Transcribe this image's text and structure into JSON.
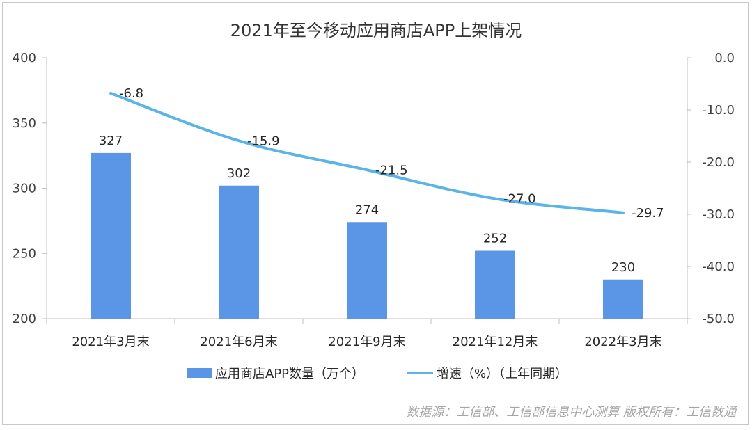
{
  "chart_data": {
    "type": "bar",
    "title": "2021年至今移动应用商店APP上架情况",
    "categories": [
      "2021年3月末",
      "2021年6月末",
      "2021年9月末",
      "2021年12月末",
      "2022年3月末"
    ],
    "series": [
      {
        "name": "应用商店APP数量（万个）",
        "type": "bar",
        "axis": "left",
        "color": "#5b96e6",
        "values": [
          327,
          302,
          274,
          252,
          230
        ],
        "labels": [
          "327",
          "302",
          "274",
          "252",
          "230"
        ]
      },
      {
        "name": "增速（%）（上年同期）",
        "type": "line",
        "axis": "right",
        "color": "#5ab4e6",
        "values": [
          -6.8,
          -15.9,
          -21.5,
          -27.0,
          -29.7
        ],
        "labels": [
          "-6.8",
          "-15.9",
          "-21.5",
          "-27.0",
          "-29.7"
        ]
      }
    ],
    "y_left": {
      "ylim": [
        200,
        400
      ],
      "ticks": [
        "200",
        "250",
        "300",
        "350",
        "400"
      ]
    },
    "y_right": {
      "ylim": [
        -50,
        0
      ],
      "ticks": [
        "-50.0",
        "-40.0",
        "-30.0",
        "-20.0",
        "-10.0",
        "0.0"
      ]
    },
    "legend_position": "bottom",
    "grid": false
  },
  "source_text": "数据源：工信部、工信部信息中心测算   版权所有：工信数通"
}
